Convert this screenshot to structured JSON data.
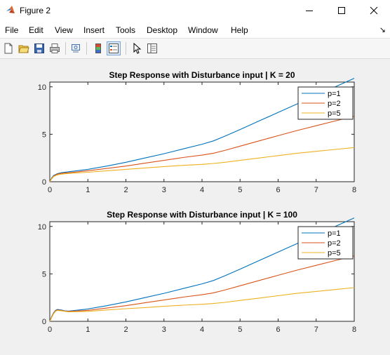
{
  "window": {
    "title": "Figure 2"
  },
  "menu": {
    "items": [
      "File",
      "Edit",
      "View",
      "Insert",
      "Tools",
      "Desktop",
      "Window",
      "Help"
    ],
    "overflow_glyph": "↘"
  },
  "toolbar": {
    "buttons": [
      "new-figure-icon",
      "open-file-icon",
      "save-icon",
      "print-icon",
      "link-plot-icon",
      "colorbar-icon",
      "legend-icon",
      "pointer-icon",
      "property-inspector-icon"
    ],
    "active": "legend-icon"
  },
  "colors": {
    "series": [
      "#0072BD",
      "#D95319",
      "#EDB120"
    ]
  },
  "chart_data": [
    {
      "type": "line",
      "title": "Step Response with Disturbance input | K = 20",
      "xlim": [
        0,
        8
      ],
      "ylim": [
        0,
        10.5
      ],
      "xticks": [
        "0",
        "1",
        "2",
        "3",
        "4",
        "5",
        "6",
        "7",
        "8"
      ],
      "yticks": [
        "0",
        "5",
        "10"
      ],
      "legend_position": "top-right",
      "x": [
        0,
        0.05,
        0.1,
        0.2,
        0.3,
        0.5,
        1,
        1.5,
        2,
        2.5,
        3,
        3.5,
        4,
        4.3,
        4.6,
        5,
        5.5,
        6,
        6.5,
        7,
        7.5,
        8
      ],
      "series": [
        {
          "name": "p=1",
          "color": "#0072BD",
          "values": [
            0,
            0.4,
            0.65,
            0.85,
            0.95,
            1.05,
            1.3,
            1.65,
            2.05,
            2.5,
            2.95,
            3.45,
            3.95,
            4.3,
            4.8,
            5.5,
            6.4,
            7.3,
            8.2,
            9.1,
            10.0,
            10.9
          ]
        },
        {
          "name": "p=2",
          "color": "#D95319",
          "values": [
            0,
            0.35,
            0.6,
            0.8,
            0.88,
            0.95,
            1.15,
            1.4,
            1.65,
            1.95,
            2.25,
            2.55,
            2.8,
            3.0,
            3.3,
            3.75,
            4.3,
            4.85,
            5.4,
            5.9,
            6.4,
            6.9
          ]
        },
        {
          "name": "p=5",
          "color": "#EDB120",
          "values": [
            0,
            0.3,
            0.55,
            0.72,
            0.8,
            0.87,
            1.0,
            1.15,
            1.3,
            1.45,
            1.6,
            1.72,
            1.83,
            1.92,
            2.05,
            2.25,
            2.5,
            2.75,
            3.0,
            3.2,
            3.4,
            3.6
          ]
        }
      ]
    },
    {
      "type": "line",
      "title": "Step Response with Disturbance input | K = 100",
      "xlim": [
        0,
        8
      ],
      "ylim": [
        0,
        10.5
      ],
      "xticks": [
        "0",
        "1",
        "2",
        "3",
        "4",
        "5",
        "6",
        "7",
        "8"
      ],
      "yticks": [
        "0",
        "5",
        "10"
      ],
      "legend_position": "top-right",
      "x": [
        0,
        0.05,
        0.1,
        0.15,
        0.2,
        0.3,
        0.4,
        0.5,
        1,
        1.5,
        2,
        2.5,
        3,
        3.5,
        4,
        4.3,
        4.6,
        5,
        5.5,
        6,
        6.5,
        7,
        7.5,
        8
      ],
      "series": [
        {
          "name": "p=1",
          "color": "#0072BD",
          "values": [
            0,
            0.5,
            0.9,
            1.15,
            1.25,
            1.2,
            1.1,
            1.08,
            1.3,
            1.65,
            2.05,
            2.5,
            2.95,
            3.45,
            3.95,
            4.3,
            4.8,
            5.5,
            6.4,
            7.3,
            8.2,
            9.1,
            10.0,
            10.9
          ]
        },
        {
          "name": "p=2",
          "color": "#D95319",
          "values": [
            0,
            0.45,
            0.85,
            1.1,
            1.2,
            1.15,
            1.08,
            1.05,
            1.15,
            1.4,
            1.65,
            1.95,
            2.25,
            2.55,
            2.8,
            3.0,
            3.3,
            3.75,
            4.3,
            4.85,
            5.4,
            5.9,
            6.4,
            6.9
          ]
        },
        {
          "name": "p=5",
          "color": "#EDB120",
          "values": [
            0,
            0.4,
            0.8,
            1.05,
            1.15,
            1.12,
            1.05,
            1.0,
            1.05,
            1.2,
            1.33,
            1.45,
            1.58,
            1.7,
            1.8,
            1.88,
            2.0,
            2.2,
            2.45,
            2.7,
            2.95,
            3.15,
            3.35,
            3.55
          ]
        }
      ]
    }
  ]
}
